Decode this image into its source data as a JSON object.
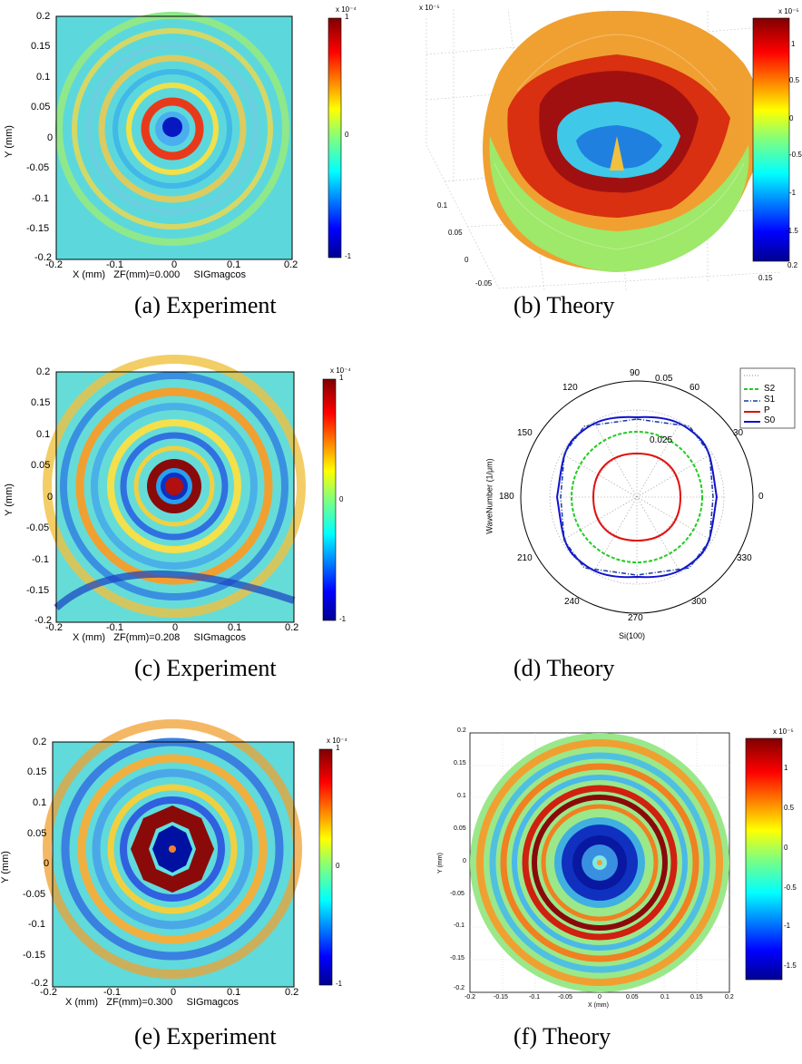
{
  "panels": [
    {
      "id": "a",
      "caption": "(a) Experiment",
      "xaxis_label": "X (mm)",
      "ylabel": "Y (mm)",
      "zf_label": "ZF(mm)=0.000",
      "sig_label": "SIGmagcos",
      "xticks": [
        "-0.2",
        "-0.1",
        "0",
        "0.1",
        "0.2"
      ],
      "yticks": [
        "0.2",
        "0.15",
        "0.1",
        "0.05",
        "0",
        "-0.05",
        "-0.1",
        "-0.15",
        "-0.2"
      ],
      "colorbar_ticks": [
        "1",
        "0",
        "-1"
      ],
      "colorbar_exp": "x 10⁻⁴"
    },
    {
      "id": "b",
      "caption": "(b) Theory",
      "ticks": [
        "0.1",
        "0.05",
        "0",
        "-0.05",
        "0.15",
        "0.2"
      ],
      "colorbar_ticks": [
        "1",
        "0.5",
        "0",
        "-0.5",
        "-1",
        "-1.5"
      ],
      "colorbar_exp": "x 10⁻⁵",
      "z_exp": "x 10⁻⁵"
    },
    {
      "id": "c",
      "caption": "(c) Experiment",
      "xaxis_label": "X (mm)",
      "ylabel": "Y (mm)",
      "zf_label": "ZF(mm)=0.208",
      "sig_label": "SIGmagcos",
      "xticks": [
        "-0.2",
        "-0.1",
        "0",
        "0.1",
        "0.2"
      ],
      "yticks": [
        "0.2",
        "0.15",
        "0.1",
        "0.05",
        "0",
        "-0.05",
        "-0.1",
        "-0.15",
        "-0.2"
      ],
      "colorbar_ticks": [
        "1",
        "0",
        "-1"
      ],
      "colorbar_exp": "x 10⁻⁴"
    },
    {
      "id": "d",
      "caption": "(d) Theory",
      "angles": [
        "90",
        "60",
        "30",
        "0",
        "330",
        "300",
        "270",
        "240",
        "210",
        "180",
        "150",
        "120"
      ],
      "radial_ticks": [
        "0.05",
        "0.025"
      ],
      "ylabel": "WaveNumber (1/μm)",
      "xlabel": "Si(100)",
      "legend": [
        "S2",
        "S1",
        "P",
        "S0"
      ]
    },
    {
      "id": "e",
      "caption": "(e) Experiment",
      "xaxis_label": "X (mm)",
      "ylabel": "Y (mm)",
      "zf_label": "ZF(mm)=0.300",
      "sig_label": "SIGmagcos",
      "xticks": [
        "-0.2",
        "-0.1",
        "0",
        "0.1",
        "0.2"
      ],
      "yticks": [
        "0.2",
        "0.15",
        "0.1",
        "0.05",
        "0",
        "-0.05",
        "-0.1",
        "-0.15",
        "-0.2"
      ],
      "colorbar_ticks": [
        "1",
        "0",
        "-1"
      ],
      "colorbar_exp": "x 10⁻⁴"
    },
    {
      "id": "f",
      "caption": "(f) Theory",
      "xlabel": "X (mm)",
      "ylabel": "Y (mm)",
      "xticks": [
        "-0.2",
        "-0.15",
        "-0.1",
        "-0.05",
        "0",
        "0.05",
        "0.1",
        "0.15",
        "0.2"
      ],
      "yticks": [
        "0.2",
        "0.15",
        "0.1",
        "0.05",
        "0",
        "-0.05",
        "-0.1",
        "-0.15",
        "-0.2"
      ],
      "colorbar_ticks": [
        "1",
        "0.5",
        "0",
        "-0.5",
        "-1",
        "-1.5"
      ],
      "colorbar_exp": "x 10⁻⁵"
    }
  ],
  "colors": {
    "jet_dark_red": "#7f0000",
    "jet_red": "#e02020",
    "jet_yellow": "#f5f03a",
    "jet_cyan": "#40e0d0",
    "jet_blue": "#1030d0",
    "jet_dark_blue": "#00008f",
    "s2_green": "#22cc22",
    "s1_blue": "#1a3aa0",
    "p_red": "#e01010",
    "s0_blue": "#1010d0"
  }
}
